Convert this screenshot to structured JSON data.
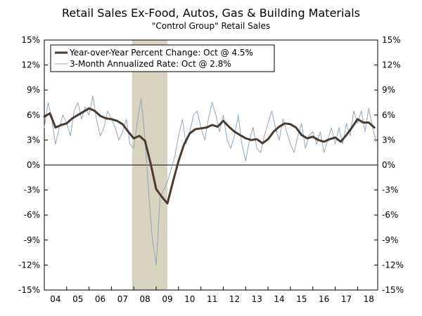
{
  "chart_data": {
    "type": "line",
    "title": "Retail Sales Ex-Food, Autos, Gas & Building Materials",
    "subtitle": "\"Control Group\" Retail Sales",
    "xlabel": "",
    "ylabel": "",
    "x_tick_labels": [
      "04",
      "05",
      "06",
      "07",
      "08",
      "09",
      "10",
      "11",
      "12",
      "13",
      "14",
      "15",
      "16",
      "17",
      "18"
    ],
    "y_tick_labels": [
      "15%",
      "12%",
      "9%",
      "6%",
      "3%",
      "0%",
      "-3%",
      "-6%",
      "-9%",
      "-12%",
      "-15%"
    ],
    "y_ticks": [
      15,
      12,
      9,
      6,
      3,
      0,
      -3,
      -6,
      -9,
      -12,
      -15
    ],
    "ylim": [
      -15,
      15
    ],
    "xlim": [
      2004.0,
      2018.9
    ],
    "grid": false,
    "zero_line": true,
    "legend_position": "top-left",
    "recession": {
      "start": 2007.92,
      "end": 2009.5,
      "color": "#d9d4c2"
    },
    "series": [
      {
        "name": "Year-over-Year Percent Change: Oct @ 4.5%",
        "color": "#4a3b30",
        "width": 3,
        "x": [
          2004.0,
          2004.25,
          2004.5,
          2004.75,
          2005.0,
          2005.25,
          2005.5,
          2005.75,
          2006.0,
          2006.25,
          2006.5,
          2006.75,
          2007.0,
          2007.25,
          2007.5,
          2007.75,
          2008.0,
          2008.25,
          2008.5,
          2008.75,
          2009.0,
          2009.25,
          2009.5,
          2009.75,
          2010.0,
          2010.25,
          2010.5,
          2010.75,
          2011.0,
          2011.25,
          2011.5,
          2011.75,
          2012.0,
          2012.25,
          2012.5,
          2012.75,
          2013.0,
          2013.25,
          2013.5,
          2013.75,
          2014.0,
          2014.25,
          2014.5,
          2014.75,
          2015.0,
          2015.25,
          2015.5,
          2015.75,
          2016.0,
          2016.25,
          2016.5,
          2016.75,
          2017.0,
          2017.25,
          2017.5,
          2017.75,
          2018.0,
          2018.25,
          2018.5,
          2018.75
        ],
        "y": [
          5.8,
          6.2,
          4.5,
          4.8,
          5.0,
          5.6,
          6.0,
          6.4,
          6.8,
          6.5,
          5.9,
          5.6,
          5.5,
          5.3,
          4.9,
          4.0,
          3.2,
          3.5,
          2.9,
          0.2,
          -2.9,
          -3.8,
          -4.6,
          -2.0,
          0.5,
          2.5,
          3.8,
          4.3,
          4.4,
          4.5,
          4.8,
          4.6,
          5.3,
          4.6,
          4.0,
          3.6,
          3.2,
          3.0,
          3.1,
          2.6,
          3.1,
          4.0,
          4.6,
          5.0,
          4.9,
          4.5,
          3.6,
          3.2,
          3.4,
          3.0,
          2.8,
          3.1,
          3.3,
          2.8,
          3.6,
          4.5,
          5.5,
          5.1,
          5.1,
          4.5
        ]
      },
      {
        "name": "3-Month Annualized Rate: Oct @ 2.8%",
        "color": "#8fa7bd",
        "width": 1,
        "x": [
          2004.0,
          2004.17,
          2004.33,
          2004.5,
          2004.67,
          2004.83,
          2005.0,
          2005.17,
          2005.33,
          2005.5,
          2005.67,
          2005.83,
          2006.0,
          2006.17,
          2006.33,
          2006.5,
          2006.67,
          2006.83,
          2007.0,
          2007.17,
          2007.33,
          2007.5,
          2007.67,
          2007.83,
          2008.0,
          2008.17,
          2008.33,
          2008.5,
          2008.67,
          2008.83,
          2009.0,
          2009.17,
          2009.33,
          2009.5,
          2009.67,
          2009.83,
          2010.0,
          2010.17,
          2010.33,
          2010.5,
          2010.67,
          2010.83,
          2011.0,
          2011.17,
          2011.33,
          2011.5,
          2011.67,
          2011.83,
          2012.0,
          2012.17,
          2012.33,
          2012.5,
          2012.67,
          2012.83,
          2013.0,
          2013.17,
          2013.33,
          2013.5,
          2013.67,
          2013.83,
          2014.0,
          2014.17,
          2014.33,
          2014.5,
          2014.67,
          2014.83,
          2015.0,
          2015.17,
          2015.33,
          2015.5,
          2015.67,
          2015.83,
          2016.0,
          2016.17,
          2016.33,
          2016.5,
          2016.67,
          2016.83,
          2017.0,
          2017.17,
          2017.33,
          2017.5,
          2017.67,
          2017.83,
          2018.0,
          2018.17,
          2018.33,
          2018.5,
          2018.67,
          2018.83
        ],
        "y": [
          4.5,
          7.5,
          5.5,
          2.5,
          4.5,
          6.0,
          5.0,
          3.5,
          6.5,
          7.5,
          5.5,
          7.0,
          6.0,
          8.3,
          5.5,
          3.5,
          4.5,
          6.5,
          5.5,
          4.5,
          3.0,
          4.0,
          5.5,
          2.5,
          2.0,
          5.5,
          8.0,
          3.0,
          -3.5,
          -9.0,
          -12.0,
          -4.0,
          -3.0,
          -2.0,
          -0.5,
          1.0,
          3.5,
          5.5,
          2.5,
          4.0,
          6.0,
          6.5,
          4.5,
          3.0,
          5.5,
          7.5,
          6.0,
          4.0,
          6.0,
          3.0,
          2.0,
          3.5,
          6.0,
          2.5,
          0.5,
          3.0,
          4.5,
          2.0,
          1.5,
          3.5,
          5.0,
          6.5,
          4.5,
          3.0,
          5.5,
          4.0,
          2.5,
          1.5,
          3.5,
          5.0,
          2.0,
          3.5,
          4.0,
          2.5,
          4.0,
          1.5,
          3.0,
          4.5,
          2.5,
          4.5,
          2.5,
          5.0,
          3.5,
          6.5,
          5.0,
          6.5,
          4.0,
          6.8,
          4.5,
          2.8
        ]
      }
    ]
  }
}
